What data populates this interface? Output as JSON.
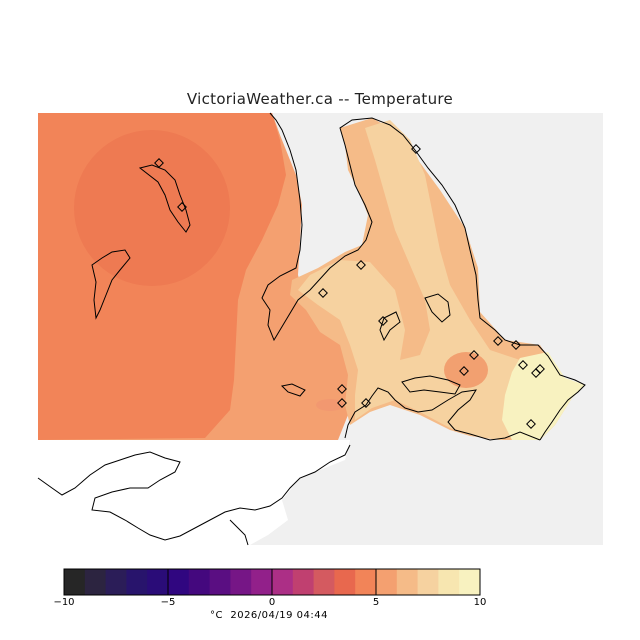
{
  "title": "VictoriaWeather.ca -- Temperature",
  "footer": {
    "unit": "°C",
    "timestamp": "2026/04/19 04:44"
  },
  "colorbar": {
    "min": -10,
    "max": 10,
    "ticks": [
      {
        "value": -10,
        "label": "−10"
      },
      {
        "value": -5,
        "label": "−5"
      },
      {
        "value": 0,
        "label": "0"
      },
      {
        "value": 5,
        "label": "5"
      },
      {
        "value": 10,
        "label": "10"
      }
    ],
    "colors": [
      "#262626",
      "#2c2440",
      "#2b1d58",
      "#28146c",
      "#2a0c78",
      "#300680",
      "#44087e",
      "#5a0e82",
      "#761686",
      "#92208a",
      "#ac2f86",
      "#c04070",
      "#d45a60",
      "#e8684e",
      "#f28458",
      "#f4a070",
      "#f5bb88",
      "#f6d2a0",
      "#f7e6b0",
      "#f8f2c0"
    ]
  },
  "colors": {
    "water": "#ffffff",
    "no_data_land": "#f0f0f0",
    "coastline": "#000000"
  },
  "legend_temperatures": {
    "west_region": "about 6°C",
    "central_peninsula": "about 8–9°C",
    "east_tip": "about 9–10°C"
  }
}
